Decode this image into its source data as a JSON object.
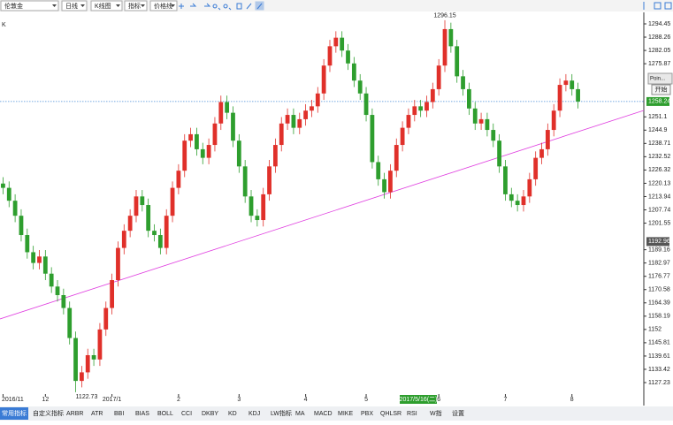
{
  "ui": {
    "toolbar": [
      "伦敦金",
      "日线",
      "K线图",
      "指标",
      "价格线"
    ],
    "popup_title": "Poin...",
    "popup_button": "开始",
    "tabs": [
      "常用指标",
      "自定义指标",
      "ARBR",
      "ATR",
      "BBI",
      "BIAS",
      "BOLL",
      "CCI",
      "DKBY",
      "KD",
      "KDJ",
      "LW指标",
      "MA",
      "MACD",
      "MIKE",
      "PBX",
      "QHLSR",
      "RSI",
      "W指",
      "设置"
    ]
  },
  "chart_data": {
    "type": "candlestick",
    "title": "K",
    "up_color": "#e0302a",
    "down_color": "#2e9e2e",
    "categories": [
      "2016/11",
      null,
      null,
      null,
      null,
      null,
      null,
      "12",
      null,
      null,
      null,
      null,
      null,
      null,
      null,
      null,
      null,
      null,
      "2017/1",
      null,
      null,
      null,
      null,
      null,
      null,
      null,
      null,
      null,
      null,
      "2",
      null,
      null,
      null,
      null,
      null,
      null,
      null,
      null,
      null,
      "3",
      null,
      null,
      null,
      null,
      null,
      null,
      null,
      null,
      null,
      null,
      "4",
      null,
      null,
      null,
      null,
      null,
      null,
      null,
      null,
      null,
      "5",
      null,
      null,
      null,
      null,
      null,
      null,
      null,
      null,
      null,
      null,
      null,
      "6",
      null,
      null,
      null,
      null,
      null,
      null,
      null,
      null,
      null,
      null,
      "7",
      null,
      null,
      null,
      null,
      null,
      null,
      null,
      null,
      null,
      null,
      "8",
      null
    ],
    "open": [
      1220,
      1218,
      1212,
      1205,
      1196,
      1188,
      1183,
      1186,
      1178,
      1172,
      1168,
      1162,
      1148,
      1128,
      1132,
      1140,
      1138,
      1152,
      1162,
      1175,
      1190,
      1198,
      1205,
      1214,
      1210,
      1198,
      1196,
      1190,
      1205,
      1218,
      1226,
      1240,
      1243,
      1236,
      1232,
      1238,
      1248,
      1258,
      1253,
      1240,
      1228,
      1214,
      1205,
      1203,
      1215,
      1228,
      1238,
      1248,
      1252,
      1246,
      1250,
      1254,
      1256,
      1262,
      1275,
      1284,
      1288,
      1282,
      1276,
      1268,
      1262,
      1252,
      1230,
      1222,
      1216,
      1226,
      1238,
      1246,
      1252,
      1256,
      1254,
      1258,
      1264,
      1275,
      1292,
      1284,
      1270,
      1264,
      1255,
      1248,
      1250,
      1245,
      1240,
      1228,
      1215,
      1212,
      1210,
      1214,
      1222,
      1232,
      1236,
      1245,
      1254,
      1266,
      1268,
      1264
    ],
    "high": [
      1223,
      1221,
      1215,
      1208,
      1199,
      1191,
      1189,
      1189,
      1181,
      1175,
      1171,
      1165,
      1151,
      1135,
      1143,
      1143,
      1155,
      1165,
      1178,
      1193,
      1201,
      1208,
      1217,
      1217,
      1213,
      1201,
      1199,
      1208,
      1221,
      1229,
      1243,
      1246,
      1246,
      1239,
      1241,
      1251,
      1261,
      1261,
      1256,
      1243,
      1231,
      1217,
      1208,
      1218,
      1231,
      1241,
      1251,
      1255,
      1255,
      1253,
      1257,
      1259,
      1265,
      1278,
      1287,
      1291,
      1291,
      1285,
      1279,
      1271,
      1265,
      1255,
      1233,
      1225,
      1229,
      1241,
      1249,
      1255,
      1259,
      1259,
      1261,
      1267,
      1278,
      1296.15,
      1295,
      1287,
      1273,
      1267,
      1258,
      1253,
      1253,
      1248,
      1243,
      1231,
      1218,
      1215,
      1217,
      1225,
      1235,
      1239,
      1248,
      1257,
      1269,
      1271,
      1271,
      1267
    ],
    "low": [
      1215,
      1209,
      1202,
      1193,
      1185,
      1180,
      1180,
      1175,
      1169,
      1165,
      1159,
      1145,
      1122.73,
      1125,
      1129,
      1135,
      1135,
      1149,
      1159,
      1172,
      1187,
      1195,
      1202,
      1207,
      1195,
      1193,
      1187,
      1187,
      1202,
      1215,
      1223,
      1237,
      1233,
      1229,
      1229,
      1235,
      1245,
      1250,
      1237,
      1225,
      1211,
      1202,
      1200,
      1200,
      1212,
      1225,
      1235,
      1245,
      1243,
      1243,
      1247,
      1251,
      1253,
      1259,
      1272,
      1281,
      1279,
      1273,
      1265,
      1259,
      1249,
      1227,
      1219,
      1213,
      1213,
      1223,
      1235,
      1243,
      1249,
      1251,
      1251,
      1255,
      1261,
      1272,
      1281,
      1267,
      1261,
      1252,
      1245,
      1245,
      1242,
      1237,
      1225,
      1212,
      1209,
      1207,
      1207,
      1211,
      1219,
      1229,
      1233,
      1242,
      1251,
      1263,
      1261,
      1255
    ],
    "close": [
      1218,
      1212,
      1205,
      1196,
      1188,
      1183,
      1186,
      1178,
      1172,
      1168,
      1162,
      1148,
      1128,
      1132,
      1140,
      1138,
      1152,
      1162,
      1175,
      1190,
      1198,
      1205,
      1214,
      1210,
      1198,
      1196,
      1190,
      1205,
      1218,
      1226,
      1240,
      1243,
      1236,
      1232,
      1238,
      1248,
      1258,
      1253,
      1240,
      1228,
      1214,
      1205,
      1203,
      1215,
      1228,
      1238,
      1248,
      1252,
      1246,
      1250,
      1254,
      1256,
      1262,
      1275,
      1284,
      1288,
      1282,
      1276,
      1268,
      1262,
      1252,
      1230,
      1222,
      1216,
      1226,
      1238,
      1246,
      1252,
      1256,
      1254,
      1258,
      1264,
      1275,
      1292,
      1284,
      1270,
      1264,
      1255,
      1248,
      1250,
      1245,
      1240,
      1228,
      1215,
      1212,
      1210,
      1214,
      1222,
      1232,
      1236,
      1245,
      1254,
      1266,
      1268,
      1264,
      1258.24
    ],
    "ylim": [
      1116.93,
      1299.8
    ],
    "yticks": [
      1294.45,
      1288.26,
      1282.05,
      1275.87,
      1251.1,
      1244.9,
      1238.71,
      1232.52,
      1226.32,
      1220.13,
      1213.94,
      1207.74,
      1201.55,
      1189.16,
      1182.97,
      1176.77,
      1170.58,
      1164.39,
      1158.19,
      1152,
      1145.81,
      1139.61,
      1133.42,
      1127.23
    ],
    "trendline": {
      "start": 1156.9,
      "end": 1254.1,
      "color": "#e040e0"
    },
    "crosshair_price": 1192.96,
    "crosshair_date": "2017/5/16(二)"
  }
}
